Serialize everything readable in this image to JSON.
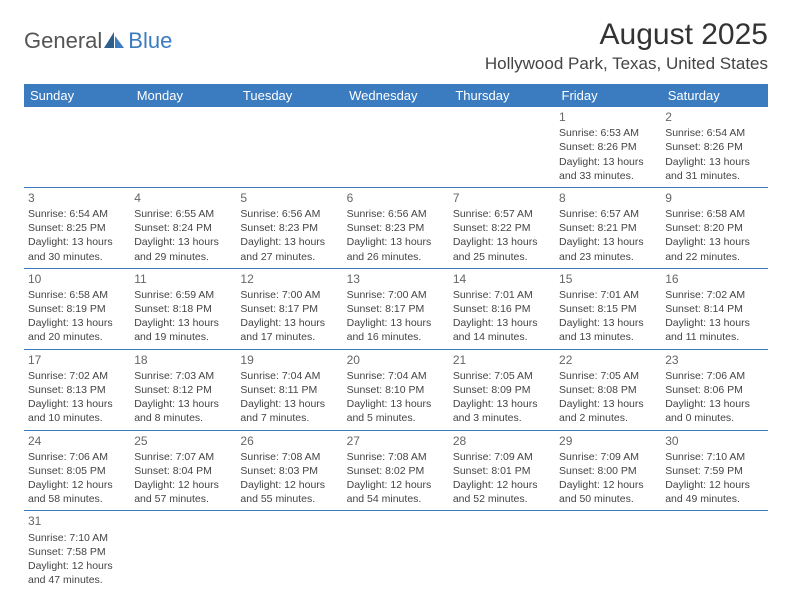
{
  "brand": {
    "part1": "General",
    "part2": "Blue"
  },
  "title": "August 2025",
  "location": "Hollywood Park, Texas, United States",
  "colors": {
    "header_bg": "#3b7bbf",
    "header_text": "#ffffff",
    "text": "#444444",
    "rule": "#3b7bbf"
  },
  "day_headers": [
    "Sunday",
    "Monday",
    "Tuesday",
    "Wednesday",
    "Thursday",
    "Friday",
    "Saturday"
  ],
  "weeks": [
    [
      null,
      null,
      null,
      null,
      null,
      {
        "n": "1",
        "sunrise": "Sunrise: 6:53 AM",
        "sunset": "Sunset: 8:26 PM",
        "daylight": "Daylight: 13 hours and 33 minutes."
      },
      {
        "n": "2",
        "sunrise": "Sunrise: 6:54 AM",
        "sunset": "Sunset: 8:26 PM",
        "daylight": "Daylight: 13 hours and 31 minutes."
      }
    ],
    [
      {
        "n": "3",
        "sunrise": "Sunrise: 6:54 AM",
        "sunset": "Sunset: 8:25 PM",
        "daylight": "Daylight: 13 hours and 30 minutes."
      },
      {
        "n": "4",
        "sunrise": "Sunrise: 6:55 AM",
        "sunset": "Sunset: 8:24 PM",
        "daylight": "Daylight: 13 hours and 29 minutes."
      },
      {
        "n": "5",
        "sunrise": "Sunrise: 6:56 AM",
        "sunset": "Sunset: 8:23 PM",
        "daylight": "Daylight: 13 hours and 27 minutes."
      },
      {
        "n": "6",
        "sunrise": "Sunrise: 6:56 AM",
        "sunset": "Sunset: 8:23 PM",
        "daylight": "Daylight: 13 hours and 26 minutes."
      },
      {
        "n": "7",
        "sunrise": "Sunrise: 6:57 AM",
        "sunset": "Sunset: 8:22 PM",
        "daylight": "Daylight: 13 hours and 25 minutes."
      },
      {
        "n": "8",
        "sunrise": "Sunrise: 6:57 AM",
        "sunset": "Sunset: 8:21 PM",
        "daylight": "Daylight: 13 hours and 23 minutes."
      },
      {
        "n": "9",
        "sunrise": "Sunrise: 6:58 AM",
        "sunset": "Sunset: 8:20 PM",
        "daylight": "Daylight: 13 hours and 22 minutes."
      }
    ],
    [
      {
        "n": "10",
        "sunrise": "Sunrise: 6:58 AM",
        "sunset": "Sunset: 8:19 PM",
        "daylight": "Daylight: 13 hours and 20 minutes."
      },
      {
        "n": "11",
        "sunrise": "Sunrise: 6:59 AM",
        "sunset": "Sunset: 8:18 PM",
        "daylight": "Daylight: 13 hours and 19 minutes."
      },
      {
        "n": "12",
        "sunrise": "Sunrise: 7:00 AM",
        "sunset": "Sunset: 8:17 PM",
        "daylight": "Daylight: 13 hours and 17 minutes."
      },
      {
        "n": "13",
        "sunrise": "Sunrise: 7:00 AM",
        "sunset": "Sunset: 8:17 PM",
        "daylight": "Daylight: 13 hours and 16 minutes."
      },
      {
        "n": "14",
        "sunrise": "Sunrise: 7:01 AM",
        "sunset": "Sunset: 8:16 PM",
        "daylight": "Daylight: 13 hours and 14 minutes."
      },
      {
        "n": "15",
        "sunrise": "Sunrise: 7:01 AM",
        "sunset": "Sunset: 8:15 PM",
        "daylight": "Daylight: 13 hours and 13 minutes."
      },
      {
        "n": "16",
        "sunrise": "Sunrise: 7:02 AM",
        "sunset": "Sunset: 8:14 PM",
        "daylight": "Daylight: 13 hours and 11 minutes."
      }
    ],
    [
      {
        "n": "17",
        "sunrise": "Sunrise: 7:02 AM",
        "sunset": "Sunset: 8:13 PM",
        "daylight": "Daylight: 13 hours and 10 minutes."
      },
      {
        "n": "18",
        "sunrise": "Sunrise: 7:03 AM",
        "sunset": "Sunset: 8:12 PM",
        "daylight": "Daylight: 13 hours and 8 minutes."
      },
      {
        "n": "19",
        "sunrise": "Sunrise: 7:04 AM",
        "sunset": "Sunset: 8:11 PM",
        "daylight": "Daylight: 13 hours and 7 minutes."
      },
      {
        "n": "20",
        "sunrise": "Sunrise: 7:04 AM",
        "sunset": "Sunset: 8:10 PM",
        "daylight": "Daylight: 13 hours and 5 minutes."
      },
      {
        "n": "21",
        "sunrise": "Sunrise: 7:05 AM",
        "sunset": "Sunset: 8:09 PM",
        "daylight": "Daylight: 13 hours and 3 minutes."
      },
      {
        "n": "22",
        "sunrise": "Sunrise: 7:05 AM",
        "sunset": "Sunset: 8:08 PM",
        "daylight": "Daylight: 13 hours and 2 minutes."
      },
      {
        "n": "23",
        "sunrise": "Sunrise: 7:06 AM",
        "sunset": "Sunset: 8:06 PM",
        "daylight": "Daylight: 13 hours and 0 minutes."
      }
    ],
    [
      {
        "n": "24",
        "sunrise": "Sunrise: 7:06 AM",
        "sunset": "Sunset: 8:05 PM",
        "daylight": "Daylight: 12 hours and 58 minutes."
      },
      {
        "n": "25",
        "sunrise": "Sunrise: 7:07 AM",
        "sunset": "Sunset: 8:04 PM",
        "daylight": "Daylight: 12 hours and 57 minutes."
      },
      {
        "n": "26",
        "sunrise": "Sunrise: 7:08 AM",
        "sunset": "Sunset: 8:03 PM",
        "daylight": "Daylight: 12 hours and 55 minutes."
      },
      {
        "n": "27",
        "sunrise": "Sunrise: 7:08 AM",
        "sunset": "Sunset: 8:02 PM",
        "daylight": "Daylight: 12 hours and 54 minutes."
      },
      {
        "n": "28",
        "sunrise": "Sunrise: 7:09 AM",
        "sunset": "Sunset: 8:01 PM",
        "daylight": "Daylight: 12 hours and 52 minutes."
      },
      {
        "n": "29",
        "sunrise": "Sunrise: 7:09 AM",
        "sunset": "Sunset: 8:00 PM",
        "daylight": "Daylight: 12 hours and 50 minutes."
      },
      {
        "n": "30",
        "sunrise": "Sunrise: 7:10 AM",
        "sunset": "Sunset: 7:59 PM",
        "daylight": "Daylight: 12 hours and 49 minutes."
      }
    ],
    [
      {
        "n": "31",
        "sunrise": "Sunrise: 7:10 AM",
        "sunset": "Sunset: 7:58 PM",
        "daylight": "Daylight: 12 hours and 47 minutes."
      },
      null,
      null,
      null,
      null,
      null,
      null
    ]
  ]
}
